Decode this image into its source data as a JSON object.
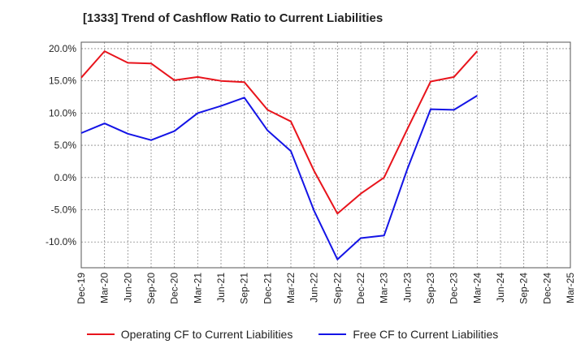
{
  "chart_data": {
    "type": "line",
    "title": "[1333]  Trend of Cashflow Ratio to Current Liabilities",
    "xlabel": "",
    "ylabel": "",
    "categories": [
      "Dec-19",
      "Mar-20",
      "Jun-20",
      "Sep-20",
      "Dec-20",
      "Mar-21",
      "Jun-21",
      "Sep-21",
      "Dec-21",
      "Mar-22",
      "Jun-22",
      "Sep-22",
      "Dec-22",
      "Mar-23",
      "Jun-23",
      "Sep-23",
      "Dec-23",
      "Mar-24",
      "Jun-24",
      "Sep-24",
      "Dec-24",
      "Mar-25"
    ],
    "ylim": [
      -14,
      21
    ],
    "yticks": [
      20,
      15,
      10,
      5,
      0,
      -5,
      -10
    ],
    "ytick_labels": [
      "20.0%",
      "15.0%",
      "10.0%",
      "5.0%",
      "0.0%",
      "-5.0%",
      "-10.0%"
    ],
    "grid": true,
    "legend_position": "bottom",
    "series": [
      {
        "name": "Operating CF to Current Liabilities",
        "color": "#e8141c",
        "values": [
          15.5,
          19.6,
          17.8,
          17.7,
          15.1,
          15.6,
          15.0,
          14.8,
          10.5,
          8.7,
          1.0,
          -5.6,
          -2.5,
          0.0,
          7.5,
          14.9,
          15.6,
          19.6,
          null,
          null,
          null,
          null
        ]
      },
      {
        "name": "Free CF to Current Liabilities",
        "color": "#1414e6",
        "values": [
          6.9,
          8.4,
          6.8,
          5.8,
          7.2,
          10.0,
          11.1,
          12.4,
          7.3,
          4.1,
          -5.2,
          -12.7,
          -9.4,
          -9.0,
          1.3,
          10.6,
          10.5,
          12.7,
          null,
          null,
          null,
          null
        ]
      }
    ]
  }
}
